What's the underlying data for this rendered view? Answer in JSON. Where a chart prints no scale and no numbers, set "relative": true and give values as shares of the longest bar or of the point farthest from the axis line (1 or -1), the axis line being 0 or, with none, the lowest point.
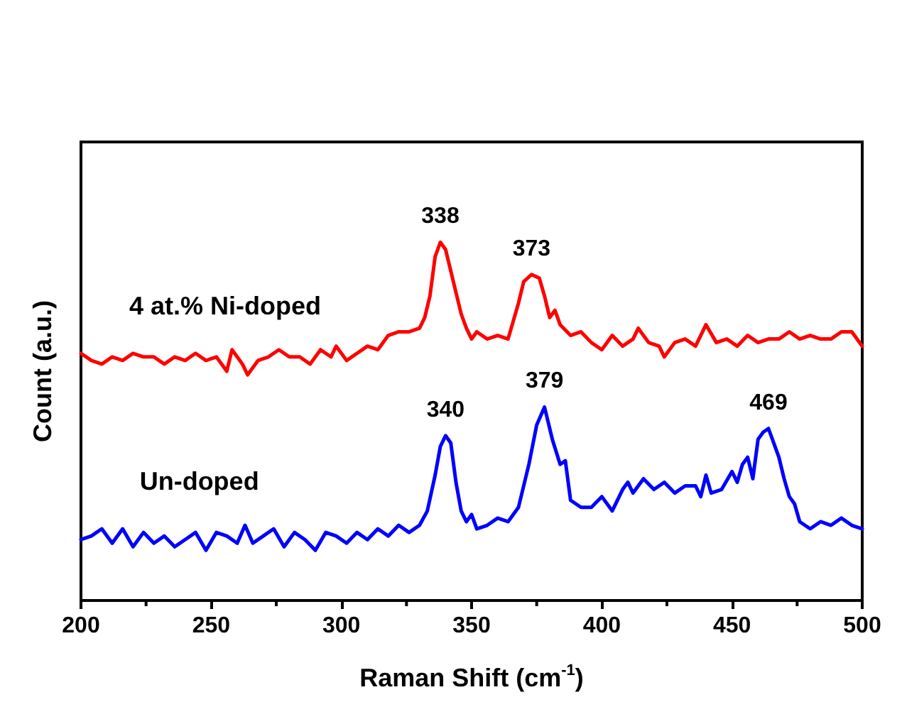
{
  "chart_data": {
    "type": "line",
    "relative": true,
    "xlabel": "Raman Shift (cm$^{-1}$)",
    "ylabel": "Count (a.u.)",
    "xlim": [
      200,
      500
    ],
    "xticks": [
      200,
      250,
      300,
      350,
      400,
      450,
      500
    ],
    "grid": false,
    "legend": false,
    "marker": "none",
    "line_style": "solid",
    "annotations": [
      {
        "text": "338",
        "x": 338,
        "y": 1.0
      },
      {
        "text": "373",
        "x": 373,
        "y": 0.91
      },
      {
        "text": "340",
        "x": 340,
        "y": 0.46
      },
      {
        "text": "379",
        "x": 378,
        "y": 0.54
      },
      {
        "text": "469",
        "x": 464,
        "y": 0.48
      }
    ],
    "series": [
      {
        "name": "4 at.% Ni-doped",
        "color": "#ff0000",
        "x": [
          200,
          204,
          208,
          212,
          216,
          220,
          224,
          228,
          232,
          236,
          240,
          244,
          248,
          252,
          256,
          258,
          262,
          264,
          268,
          272,
          276,
          280,
          284,
          288,
          292,
          296,
          298,
          302,
          306,
          310,
          314,
          318,
          322,
          326,
          330,
          332,
          334,
          336,
          338,
          340,
          342,
          344,
          346,
          348,
          350,
          352,
          356,
          360,
          364,
          366,
          368,
          370,
          373,
          376,
          378,
          380,
          382,
          384,
          388,
          392,
          396,
          400,
          404,
          408,
          412,
          414,
          418,
          422,
          424,
          428,
          432,
          436,
          440,
          444,
          448,
          452,
          456,
          460,
          464,
          468,
          472,
          476,
          480,
          484,
          488,
          492,
          496,
          500
        ],
        "values": [
          0.69,
          0.67,
          0.66,
          0.68,
          0.67,
          0.69,
          0.68,
          0.68,
          0.66,
          0.68,
          0.67,
          0.69,
          0.67,
          0.68,
          0.64,
          0.7,
          0.66,
          0.63,
          0.67,
          0.68,
          0.7,
          0.68,
          0.68,
          0.66,
          0.7,
          0.68,
          0.71,
          0.67,
          0.69,
          0.71,
          0.7,
          0.74,
          0.75,
          0.75,
          0.76,
          0.79,
          0.85,
          0.96,
          1.0,
          0.98,
          0.92,
          0.86,
          0.8,
          0.76,
          0.73,
          0.75,
          0.73,
          0.74,
          0.73,
          0.78,
          0.83,
          0.89,
          0.91,
          0.9,
          0.85,
          0.79,
          0.81,
          0.77,
          0.74,
          0.75,
          0.72,
          0.7,
          0.74,
          0.71,
          0.73,
          0.76,
          0.72,
          0.71,
          0.68,
          0.72,
          0.73,
          0.71,
          0.77,
          0.72,
          0.73,
          0.71,
          0.74,
          0.72,
          0.73,
          0.73,
          0.75,
          0.73,
          0.74,
          0.73,
          0.73,
          0.75,
          0.75,
          0.71
        ]
      },
      {
        "name": "Un-doped",
        "color": "#0000ff",
        "x": [
          200,
          204,
          208,
          212,
          216,
          220,
          224,
          228,
          232,
          236,
          240,
          244,
          248,
          252,
          256,
          260,
          263,
          266,
          270,
          274,
          278,
          282,
          286,
          290,
          294,
          298,
          302,
          306,
          310,
          314,
          318,
          322,
          326,
          330,
          333,
          336,
          338,
          340,
          342,
          344,
          346,
          348,
          350,
          352,
          356,
          360,
          364,
          368,
          372,
          375,
          378,
          381,
          384,
          386,
          388,
          392,
          396,
          400,
          404,
          408,
          410,
          412,
          416,
          420,
          424,
          428,
          432,
          436,
          438,
          440,
          442,
          446,
          450,
          452,
          454,
          456,
          458,
          460,
          462,
          464,
          466,
          468,
          470,
          472,
          474,
          476,
          480,
          484,
          488,
          492,
          496,
          500
        ],
        "values": [
          0.17,
          0.18,
          0.2,
          0.16,
          0.2,
          0.15,
          0.19,
          0.16,
          0.18,
          0.15,
          0.17,
          0.19,
          0.14,
          0.19,
          0.18,
          0.16,
          0.21,
          0.16,
          0.18,
          0.2,
          0.15,
          0.19,
          0.17,
          0.14,
          0.19,
          0.18,
          0.16,
          0.19,
          0.17,
          0.2,
          0.18,
          0.21,
          0.19,
          0.21,
          0.25,
          0.35,
          0.43,
          0.46,
          0.44,
          0.33,
          0.25,
          0.22,
          0.24,
          0.2,
          0.21,
          0.23,
          0.22,
          0.26,
          0.38,
          0.49,
          0.54,
          0.45,
          0.38,
          0.39,
          0.28,
          0.26,
          0.26,
          0.29,
          0.25,
          0.31,
          0.33,
          0.3,
          0.34,
          0.31,
          0.33,
          0.3,
          0.32,
          0.32,
          0.29,
          0.35,
          0.3,
          0.31,
          0.36,
          0.33,
          0.38,
          0.4,
          0.34,
          0.45,
          0.47,
          0.48,
          0.44,
          0.4,
          0.34,
          0.29,
          0.27,
          0.22,
          0.2,
          0.22,
          0.21,
          0.23,
          0.21,
          0.2
        ]
      }
    ]
  }
}
